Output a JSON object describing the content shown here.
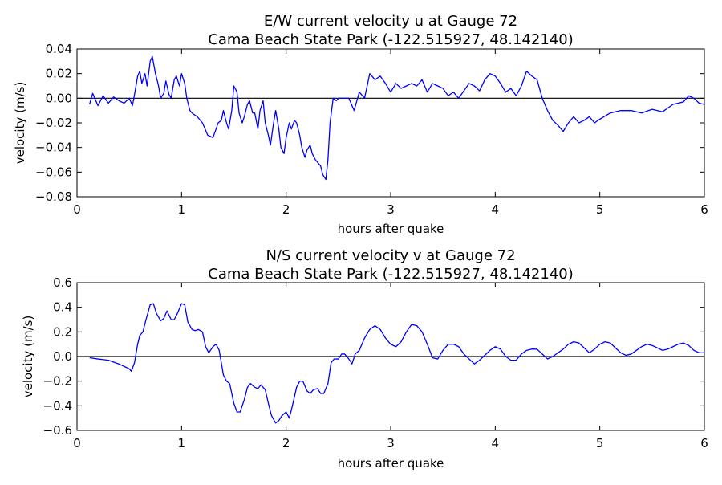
{
  "chart_data": [
    {
      "type": "line",
      "title_line1": "E/W current velocity u at Gauge 72",
      "title_line2": "Cama Beach State Park  (-122.515927, 48.142140)",
      "xlabel": "hours after quake",
      "ylabel": "velocity (m/s)",
      "xlim": [
        0,
        6
      ],
      "ylim": [
        -0.08,
        0.04
      ],
      "xticks": [
        0,
        1,
        2,
        3,
        4,
        5,
        6
      ],
      "xtick_labels": [
        "0",
        "1",
        "2",
        "3",
        "4",
        "5",
        "6"
      ],
      "yticks": [
        0.04,
        0.02,
        0.0,
        -0.02,
        -0.04,
        -0.06,
        -0.08
      ],
      "ytick_labels": [
        "0.04",
        "0.02",
        "0.00",
        "−0.02",
        "−0.04",
        "−0.06",
        "−0.08"
      ],
      "zero_line": true,
      "series_color": "#0000ff",
      "series": [
        {
          "x": [
            0.12,
            0.15,
            0.2,
            0.25,
            0.3,
            0.35,
            0.4,
            0.45,
            0.5,
            0.53,
            0.55,
            0.58,
            0.6,
            0.62,
            0.65,
            0.67,
            0.7,
            0.72,
            0.75,
            0.78,
            0.8,
            0.83,
            0.85,
            0.88,
            0.9,
            0.93,
            0.95,
            0.98,
            1.0,
            1.03,
            1.05,
            1.08,
            1.1,
            1.15,
            1.2,
            1.25,
            1.3,
            1.33,
            1.35,
            1.38,
            1.4,
            1.43,
            1.45,
            1.48,
            1.5,
            1.53,
            1.55,
            1.58,
            1.6,
            1.63,
            1.65,
            1.68,
            1.7,
            1.73,
            1.75,
            1.78,
            1.8,
            1.83,
            1.85,
            1.88,
            1.9,
            1.93,
            1.95,
            1.98,
            2.0,
            2.03,
            2.05,
            2.08,
            2.1,
            2.13,
            2.15,
            2.18,
            2.2,
            2.23,
            2.25,
            2.28,
            2.3,
            2.33,
            2.35,
            2.38,
            2.4,
            2.42,
            2.45,
            2.48,
            2.5,
            2.55,
            2.6,
            2.65,
            2.7,
            2.75,
            2.8,
            2.85,
            2.9,
            2.95,
            3.0,
            3.05,
            3.1,
            3.15,
            3.2,
            3.25,
            3.3,
            3.35,
            3.4,
            3.45,
            3.5,
            3.55,
            3.6,
            3.65,
            3.7,
            3.75,
            3.8,
            3.85,
            3.9,
            3.95,
            4.0,
            4.05,
            4.1,
            4.15,
            4.2,
            4.25,
            4.3,
            4.35,
            4.4,
            4.45,
            4.5,
            4.55,
            4.6,
            4.65,
            4.7,
            4.75,
            4.8,
            4.85,
            4.9,
            4.95,
            5.0,
            5.1,
            5.2,
            5.3,
            5.4,
            5.5,
            5.6,
            5.7,
            5.8,
            5.85,
            5.9,
            5.95,
            6.0
          ],
          "y": [
            -0.005,
            0.004,
            -0.006,
            0.002,
            -0.004,
            0.001,
            -0.002,
            -0.004,
            0.0,
            -0.006,
            0.003,
            0.018,
            0.022,
            0.012,
            0.02,
            0.01,
            0.03,
            0.034,
            0.02,
            0.01,
            0.0,
            0.004,
            0.014,
            0.003,
            0.0,
            0.015,
            0.018,
            0.01,
            0.02,
            0.012,
            0.0,
            -0.01,
            -0.012,
            -0.015,
            -0.02,
            -0.03,
            -0.032,
            -0.025,
            -0.02,
            -0.018,
            -0.01,
            -0.02,
            -0.025,
            -0.01,
            0.01,
            0.005,
            -0.012,
            -0.02,
            -0.015,
            -0.005,
            -0.002,
            -0.012,
            -0.012,
            -0.025,
            -0.01,
            -0.002,
            -0.02,
            -0.03,
            -0.038,
            -0.02,
            -0.01,
            -0.025,
            -0.04,
            -0.045,
            -0.032,
            -0.02,
            -0.025,
            -0.018,
            -0.02,
            -0.03,
            -0.04,
            -0.048,
            -0.042,
            -0.038,
            -0.045,
            -0.05,
            -0.052,
            -0.055,
            -0.062,
            -0.066,
            -0.05,
            -0.02,
            0.0,
            -0.002,
            0.0,
            0.0,
            0.0,
            -0.01,
            0.005,
            0.0,
            0.02,
            0.015,
            0.018,
            0.012,
            0.005,
            0.012,
            0.008,
            0.01,
            0.012,
            0.01,
            0.015,
            0.005,
            0.012,
            0.01,
            0.008,
            0.002,
            0.005,
            0.0,
            0.006,
            0.012,
            0.01,
            0.006,
            0.015,
            0.02,
            0.018,
            0.012,
            0.005,
            0.008,
            0.002,
            0.01,
            0.022,
            0.018,
            0.015,
            0.0,
            -0.01,
            -0.018,
            -0.022,
            -0.027,
            -0.02,
            -0.015,
            -0.02,
            -0.018,
            -0.015,
            -0.02,
            -0.017,
            -0.012,
            -0.01,
            -0.01,
            -0.012,
            -0.009,
            -0.011,
            -0.005,
            -0.003,
            0.002,
            0.0,
            -0.004,
            -0.005
          ]
        }
      ]
    },
    {
      "type": "line",
      "title_line1": "N/S current velocity v at Gauge 72",
      "title_line2": "Cama Beach State Park  (-122.515927, 48.142140)",
      "xlabel": "hours after quake",
      "ylabel": "velocity (m/s)",
      "xlim": [
        0,
        6
      ],
      "ylim": [
        -0.6,
        0.6
      ],
      "xticks": [
        0,
        1,
        2,
        3,
        4,
        5,
        6
      ],
      "xtick_labels": [
        "0",
        "1",
        "2",
        "3",
        "4",
        "5",
        "6"
      ],
      "yticks": [
        0.6,
        0.4,
        0.2,
        0.0,
        -0.2,
        -0.4,
        -0.6
      ],
      "ytick_labels": [
        "0.6",
        "0.4",
        "0.2",
        "0.0",
        "−0.2",
        "−0.4",
        "−0.6"
      ],
      "zero_line": true,
      "series_color": "#0000ff",
      "series": [
        {
          "x": [
            0.12,
            0.2,
            0.3,
            0.4,
            0.45,
            0.5,
            0.52,
            0.55,
            0.58,
            0.6,
            0.63,
            0.66,
            0.7,
            0.73,
            0.76,
            0.8,
            0.83,
            0.86,
            0.9,
            0.93,
            0.96,
            1.0,
            1.03,
            1.06,
            1.1,
            1.13,
            1.16,
            1.2,
            1.23,
            1.26,
            1.3,
            1.33,
            1.36,
            1.4,
            1.43,
            1.46,
            1.5,
            1.53,
            1.56,
            1.6,
            1.63,
            1.66,
            1.7,
            1.73,
            1.76,
            1.8,
            1.83,
            1.86,
            1.9,
            1.93,
            1.96,
            2.0,
            2.03,
            2.06,
            2.1,
            2.13,
            2.16,
            2.2,
            2.23,
            2.26,
            2.3,
            2.33,
            2.36,
            2.4,
            2.43,
            2.46,
            2.5,
            2.53,
            2.56,
            2.6,
            2.63,
            2.66,
            2.7,
            2.75,
            2.8,
            2.85,
            2.9,
            2.95,
            3.0,
            3.05,
            3.1,
            3.15,
            3.2,
            3.25,
            3.3,
            3.35,
            3.4,
            3.45,
            3.5,
            3.55,
            3.6,
            3.65,
            3.7,
            3.75,
            3.8,
            3.85,
            3.9,
            3.95,
            4.0,
            4.05,
            4.1,
            4.15,
            4.2,
            4.25,
            4.3,
            4.35,
            4.4,
            4.45,
            4.5,
            4.55,
            4.6,
            4.65,
            4.7,
            4.75,
            4.8,
            4.85,
            4.9,
            4.95,
            5.0,
            5.05,
            5.1,
            5.15,
            5.2,
            5.25,
            5.3,
            5.35,
            5.4,
            5.45,
            5.5,
            5.55,
            5.6,
            5.65,
            5.7,
            5.75,
            5.8,
            5.85,
            5.9,
            5.95,
            6.0
          ],
          "y": [
            -0.01,
            -0.02,
            -0.03,
            -0.06,
            -0.08,
            -0.1,
            -0.12,
            -0.05,
            0.1,
            0.17,
            0.2,
            0.3,
            0.42,
            0.43,
            0.35,
            0.29,
            0.31,
            0.37,
            0.3,
            0.3,
            0.35,
            0.43,
            0.42,
            0.28,
            0.22,
            0.21,
            0.22,
            0.2,
            0.08,
            0.03,
            0.08,
            0.1,
            0.05,
            -0.15,
            -0.2,
            -0.22,
            -0.38,
            -0.45,
            -0.45,
            -0.35,
            -0.25,
            -0.22,
            -0.25,
            -0.26,
            -0.23,
            -0.27,
            -0.38,
            -0.48,
            -0.54,
            -0.52,
            -0.48,
            -0.45,
            -0.5,
            -0.4,
            -0.25,
            -0.2,
            -0.2,
            -0.28,
            -0.3,
            -0.27,
            -0.26,
            -0.3,
            -0.3,
            -0.22,
            -0.05,
            -0.02,
            -0.02,
            0.02,
            0.02,
            -0.02,
            -0.06,
            0.02,
            0.05,
            0.15,
            0.22,
            0.25,
            0.22,
            0.15,
            0.1,
            0.08,
            0.12,
            0.2,
            0.26,
            0.25,
            0.2,
            0.1,
            -0.01,
            -0.02,
            0.05,
            0.1,
            0.1,
            0.08,
            0.02,
            -0.02,
            -0.06,
            -0.03,
            0.01,
            0.05,
            0.08,
            0.06,
            0.0,
            -0.03,
            -0.03,
            0.02,
            0.05,
            0.06,
            0.06,
            0.02,
            -0.02,
            0.0,
            0.03,
            0.06,
            0.1,
            0.12,
            0.11,
            0.07,
            0.03,
            0.06,
            0.1,
            0.12,
            0.11,
            0.07,
            0.03,
            0.01,
            0.02,
            0.05,
            0.08,
            0.1,
            0.09,
            0.07,
            0.05,
            0.06,
            0.08,
            0.1,
            0.11,
            0.09,
            0.05,
            0.03,
            0.03
          ]
        }
      ]
    }
  ]
}
